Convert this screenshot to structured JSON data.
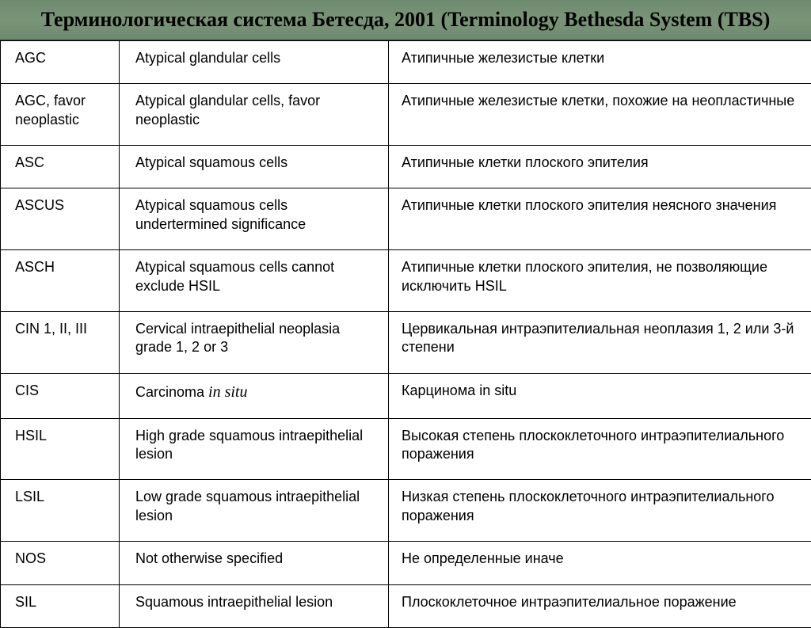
{
  "header": {
    "title": "Терминологическая система Бетесда, 2001 (Terminology Bethesda System (TBS)"
  },
  "table": {
    "rows": [
      {
        "abbr": "AGC",
        "eng": "Atypical glandular cells",
        "rus": "Атипичные железистые клетки"
      },
      {
        "abbr": "AGC, favor neoplastic",
        "eng": "Atypical glandular cells, favor neoplastic",
        "rus": "Атипичные железистые клетки, похожие на неопластичные"
      },
      {
        "abbr": "ASC",
        "eng": "Atypical squamous cells",
        "rus": "Атипичные клетки плоского эпителия",
        "eng_tight": true
      },
      {
        "abbr": "ASCUS",
        "eng": "Atypical squamous cells undertermined significance",
        "rus": "Атипичные клетки плоского эпителия неясного значения"
      },
      {
        "abbr": "ASCH",
        "eng": "Atypical squamous cells cannot exclude HSIL",
        "rus": "Атипичные клетки плоского эпителия, не позволяющие исключить HSIL"
      },
      {
        "abbr": "CIN 1, II, III",
        "eng": "Cervical intraepithelial neoplasia grade 1, 2 or 3",
        "rus": "Цервикальная интраэпителиальная неоплазия 1, 2 или 3-й степени"
      },
      {
        "abbr": "CIS",
        "eng_html": "Carcinoma <span class=\"italic\">in situ</span>",
        "rus": "Карцинома in situ"
      },
      {
        "abbr": "HSIL",
        "eng": "High grade squamous intraepithelial lesion",
        "rus": "Высокая степень плоскоклеточного интраэпителиального поражения"
      },
      {
        "abbr": "LSIL",
        "eng": "Low grade squamous intraepithelial lesion",
        "rus": "Низкая степень плоскоклеточного интраэпителиального поражения"
      },
      {
        "abbr": "NOS",
        "eng": "Not otherwise specified",
        "rus": "Не определенные иначе"
      },
      {
        "abbr": "SIL",
        "eng": "Squamous intraepithelial lesion",
        "rus": "Плоскоклеточное интраэпителиальное поражение"
      }
    ]
  }
}
